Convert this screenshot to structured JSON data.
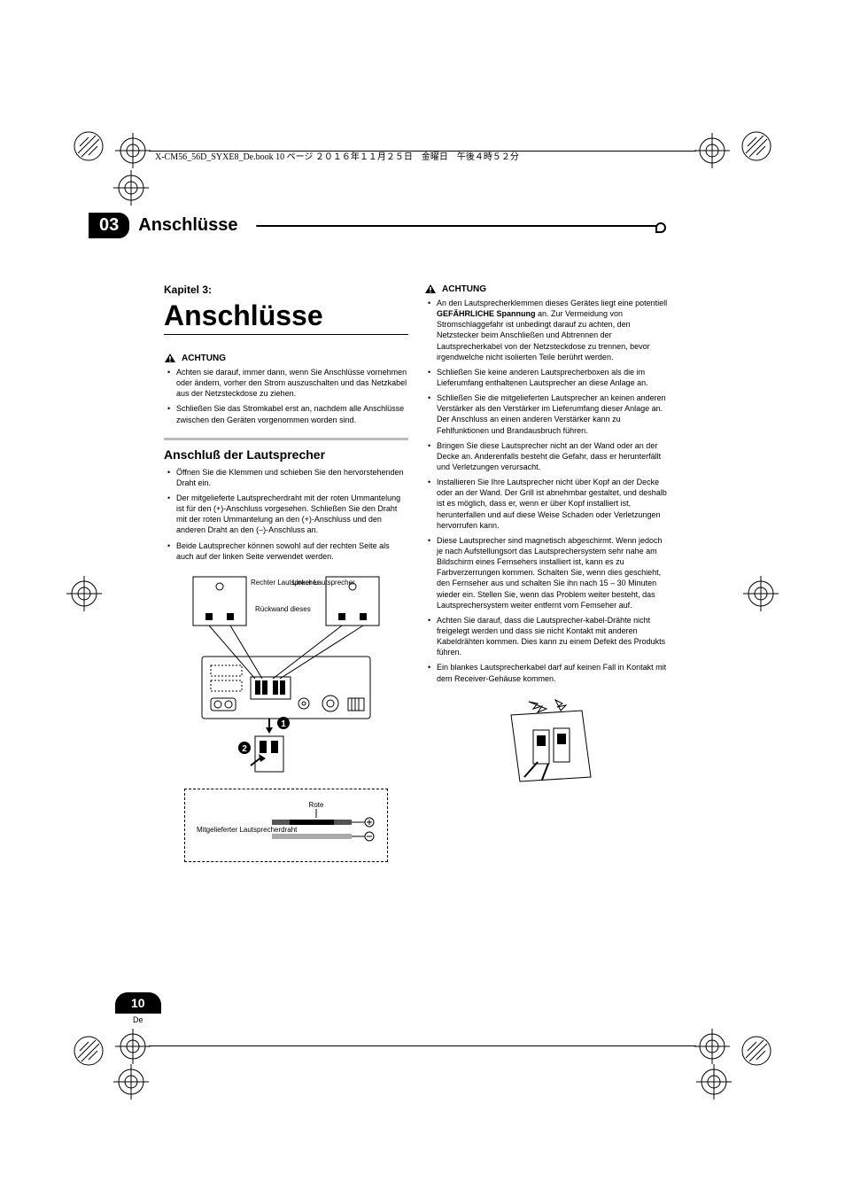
{
  "header": {
    "book_info": "X-CM56_56D_SYXE8_De.book  10 ページ  ２０１６年１１月２５日　金曜日　午後４時５２分"
  },
  "section": {
    "chapter_num": "03",
    "title": "Anschlüsse"
  },
  "main": {
    "kapitel": "Kapitel 3:",
    "big_title": "Anschlüsse",
    "achtung_label": "ACHTUNG",
    "left_achtung_bullets": [
      "Achten sie darauf, immer dann, wenn Sie Anschlüsse vornehmen oder ändern, vorher den Strom auszuschalten und das Netzkabel aus der Netzsteckdose zu ziehen.",
      "Schließen Sie das Stromkabel erst an, nachdem alle Anschlüsse zwischen den Geräten vorgenommen worden sind."
    ],
    "subheading": "Anschluß der Lautsprecher",
    "speaker_bullets": [
      "Öffnen Sie die Klemmen und schieben Sie den hervorstehenden Draht ein.",
      "Der mitgelieferte Lautsprecherdraht mit der roten Ummantelung ist für den (+)-Anschluss vorgesehen. Schließen Sie den Draht mit der roten Ummantelung an den (+)-Anschluss und den anderen Draht an den (–)-Anschluss an.",
      "Beide Lautsprecher können sowohl auf der rechten Seite als auch auf der linken Seite verwendet werden."
    ],
    "diagram": {
      "right_speaker": "Rechter Lautsprecher",
      "left_speaker": "Linker Lautsprecher",
      "rear_panel": "Rückwand dieses",
      "rote": "Rote",
      "wire_label": "Mitgelieferter Lautsprecherdraht"
    },
    "right_achtung_bullets": [
      {
        "pre": "An den Lautsprecherklemmen dieses Gerätes liegt eine potentiell ",
        "bold": "GEFÄHRLICHE Spannung",
        "post": " an. Zur Vermeidung von Stromschlaggefahr ist unbedingt darauf zu achten, den Netzstecker beim Anschließen und Abtrennen der Lautsprecherkabel von der Netzsteckdose zu trennen, bevor irgendwelche nicht isolierten Teile berührt werden."
      },
      {
        "pre": "Schließen Sie keine anderen Lautsprecherboxen als die im Lieferumfang enthaltenen Lautsprecher an diese Anlage an.",
        "bold": "",
        "post": ""
      },
      {
        "pre": "Schließen Sie die mitgelieferten Lautsprecher an keinen anderen Verstärker als den Verstärker im Lieferumfang dieser Anlage an. Der Anschluss an einen anderen Verstärker kann zu Fehlfunktionen und Brandausbruch führen.",
        "bold": "",
        "post": ""
      },
      {
        "pre": "Bringen Sie diese Lautsprecher nicht an der Wand oder an der Decke an. Anderenfalls besteht die Gefahr, dass er herunterfällt und Verletzungen verursacht.",
        "bold": "",
        "post": ""
      },
      {
        "pre": "Installieren Sie Ihre Lautsprecher nicht über Kopf an der Decke oder an der Wand. Der Grill ist abnehmbar gestaltet, und deshalb ist es möglich, dass er, wenn er über Kopf installiert ist, herunterfallen und auf diese Weise Schaden oder Verletzungen hervorrufen kann.",
        "bold": "",
        "post": ""
      },
      {
        "pre": "Diese Lautsprecher sind magnetisch abgeschirmt. Wenn jedoch je nach Aufstellungsort das Lautsprechersystem sehr nahe am Bildschirm eines Fernsehers installiert ist, kann es zu Farbverzerrungen kommen. Schalten Sie, wenn dies geschieht, den Fernseher aus und schalten Sie ihn nach 15 – 30 Minuten wieder ein. Stellen Sie, wenn das Problem weiter besteht, das Lautsprechersystem weiter entfernt vom Femseher auf.",
        "bold": "",
        "post": ""
      },
      {
        "pre": "Achten Sie darauf, dass die Lautsprecher-kabel-Drähte nicht freigelegt werden und dass sie nicht Kontakt mit anderen Kabeldrähten kommen. Dies kann zu einem Defekt des Produkts führen.",
        "bold": "",
        "post": ""
      },
      {
        "pre": "Ein blankes Lautsprecherkabel darf auf keinen Fall in Kontakt mit dem Receiver-Gehäuse kommen.",
        "bold": "",
        "post": ""
      }
    ]
  },
  "footer": {
    "page_num": "10",
    "lang": "De"
  },
  "colors": {
    "black": "#000000",
    "gray_divider": "#bbbbbb",
    "white": "#ffffff"
  }
}
